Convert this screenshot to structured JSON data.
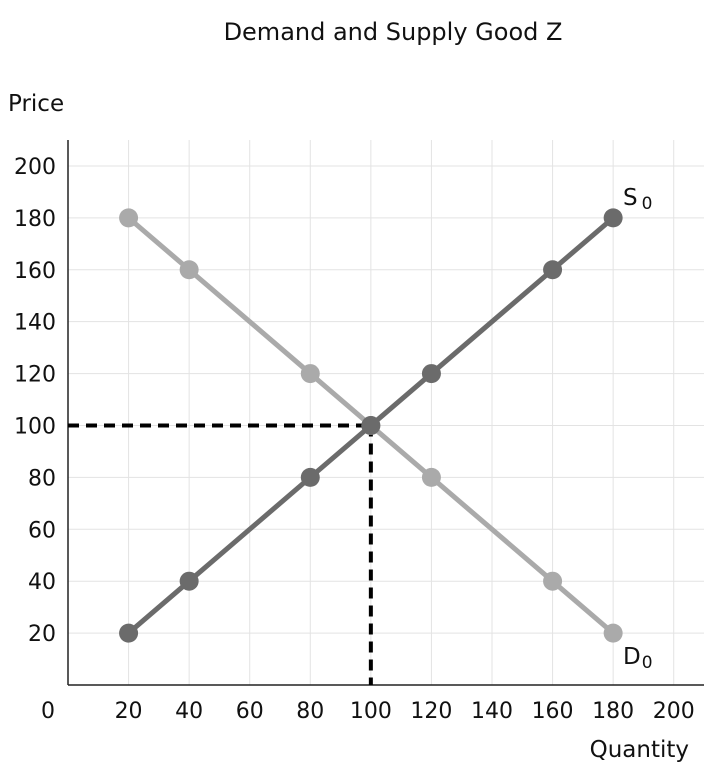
{
  "chart_data": {
    "type": "line",
    "title": "Demand and Supply Good Z",
    "xlabel": "Quantity",
    "ylabel": "Price",
    "xlim": [
      0,
      210
    ],
    "ylim": [
      0,
      210
    ],
    "x_ticks": [
      0,
      20,
      40,
      60,
      80,
      100,
      120,
      140,
      160,
      180,
      200
    ],
    "y_ticks": [
      20,
      40,
      60,
      80,
      100,
      120,
      140,
      160,
      180,
      200
    ],
    "grid": true,
    "series": [
      {
        "name": "S",
        "subscript": "0",
        "color": "#6b6b6b",
        "points": [
          [
            20,
            20
          ],
          [
            40,
            40
          ],
          [
            80,
            80
          ],
          [
            100,
            100
          ],
          [
            120,
            120
          ],
          [
            160,
            160
          ],
          [
            180,
            180
          ]
        ]
      },
      {
        "name": "D",
        "subscript": "0",
        "color": "#aaaaaa",
        "points": [
          [
            20,
            180
          ],
          [
            40,
            160
          ],
          [
            80,
            120
          ],
          [
            100,
            100
          ],
          [
            120,
            80
          ],
          [
            160,
            40
          ],
          [
            180,
            20
          ]
        ]
      }
    ],
    "annotations": [
      {
        "type": "equilibrium-dashed-lines",
        "x": 100,
        "y": 100
      }
    ]
  }
}
